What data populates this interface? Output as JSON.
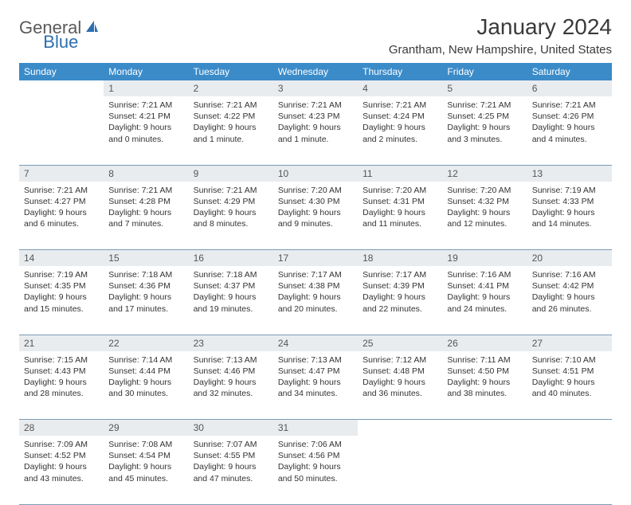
{
  "logo": {
    "text_gray": "General",
    "text_blue": "Blue"
  },
  "title": "January 2024",
  "location": "Grantham, New Hampshire, United States",
  "colors": {
    "header_bg": "#3b8bc9",
    "header_text": "#ffffff",
    "daynum_bg": "#e9ecef",
    "border": "#7a9bb5",
    "logo_gray": "#5a5a5a",
    "logo_blue": "#2c6fb0",
    "body_text": "#333333"
  },
  "typography": {
    "title_fontsize": 28,
    "location_fontsize": 15,
    "weekday_fontsize": 12,
    "daynum_fontsize": 12,
    "cell_fontsize": 10.5
  },
  "weekdays": [
    "Sunday",
    "Monday",
    "Tuesday",
    "Wednesday",
    "Thursday",
    "Friday",
    "Saturday"
  ],
  "weeks": [
    [
      null,
      {
        "n": "1",
        "sr": "Sunrise: 7:21 AM",
        "ss": "Sunset: 4:21 PM",
        "d1": "Daylight: 9 hours",
        "d2": "and 0 minutes."
      },
      {
        "n": "2",
        "sr": "Sunrise: 7:21 AM",
        "ss": "Sunset: 4:22 PM",
        "d1": "Daylight: 9 hours",
        "d2": "and 1 minute."
      },
      {
        "n": "3",
        "sr": "Sunrise: 7:21 AM",
        "ss": "Sunset: 4:23 PM",
        "d1": "Daylight: 9 hours",
        "d2": "and 1 minute."
      },
      {
        "n": "4",
        "sr": "Sunrise: 7:21 AM",
        "ss": "Sunset: 4:24 PM",
        "d1": "Daylight: 9 hours",
        "d2": "and 2 minutes."
      },
      {
        "n": "5",
        "sr": "Sunrise: 7:21 AM",
        "ss": "Sunset: 4:25 PM",
        "d1": "Daylight: 9 hours",
        "d2": "and 3 minutes."
      },
      {
        "n": "6",
        "sr": "Sunrise: 7:21 AM",
        "ss": "Sunset: 4:26 PM",
        "d1": "Daylight: 9 hours",
        "d2": "and 4 minutes."
      }
    ],
    [
      {
        "n": "7",
        "sr": "Sunrise: 7:21 AM",
        "ss": "Sunset: 4:27 PM",
        "d1": "Daylight: 9 hours",
        "d2": "and 6 minutes."
      },
      {
        "n": "8",
        "sr": "Sunrise: 7:21 AM",
        "ss": "Sunset: 4:28 PM",
        "d1": "Daylight: 9 hours",
        "d2": "and 7 minutes."
      },
      {
        "n": "9",
        "sr": "Sunrise: 7:21 AM",
        "ss": "Sunset: 4:29 PM",
        "d1": "Daylight: 9 hours",
        "d2": "and 8 minutes."
      },
      {
        "n": "10",
        "sr": "Sunrise: 7:20 AM",
        "ss": "Sunset: 4:30 PM",
        "d1": "Daylight: 9 hours",
        "d2": "and 9 minutes."
      },
      {
        "n": "11",
        "sr": "Sunrise: 7:20 AM",
        "ss": "Sunset: 4:31 PM",
        "d1": "Daylight: 9 hours",
        "d2": "and 11 minutes."
      },
      {
        "n": "12",
        "sr": "Sunrise: 7:20 AM",
        "ss": "Sunset: 4:32 PM",
        "d1": "Daylight: 9 hours",
        "d2": "and 12 minutes."
      },
      {
        "n": "13",
        "sr": "Sunrise: 7:19 AM",
        "ss": "Sunset: 4:33 PM",
        "d1": "Daylight: 9 hours",
        "d2": "and 14 minutes."
      }
    ],
    [
      {
        "n": "14",
        "sr": "Sunrise: 7:19 AM",
        "ss": "Sunset: 4:35 PM",
        "d1": "Daylight: 9 hours",
        "d2": "and 15 minutes."
      },
      {
        "n": "15",
        "sr": "Sunrise: 7:18 AM",
        "ss": "Sunset: 4:36 PM",
        "d1": "Daylight: 9 hours",
        "d2": "and 17 minutes."
      },
      {
        "n": "16",
        "sr": "Sunrise: 7:18 AM",
        "ss": "Sunset: 4:37 PM",
        "d1": "Daylight: 9 hours",
        "d2": "and 19 minutes."
      },
      {
        "n": "17",
        "sr": "Sunrise: 7:17 AM",
        "ss": "Sunset: 4:38 PM",
        "d1": "Daylight: 9 hours",
        "d2": "and 20 minutes."
      },
      {
        "n": "18",
        "sr": "Sunrise: 7:17 AM",
        "ss": "Sunset: 4:39 PM",
        "d1": "Daylight: 9 hours",
        "d2": "and 22 minutes."
      },
      {
        "n": "19",
        "sr": "Sunrise: 7:16 AM",
        "ss": "Sunset: 4:41 PM",
        "d1": "Daylight: 9 hours",
        "d2": "and 24 minutes."
      },
      {
        "n": "20",
        "sr": "Sunrise: 7:16 AM",
        "ss": "Sunset: 4:42 PM",
        "d1": "Daylight: 9 hours",
        "d2": "and 26 minutes."
      }
    ],
    [
      {
        "n": "21",
        "sr": "Sunrise: 7:15 AM",
        "ss": "Sunset: 4:43 PM",
        "d1": "Daylight: 9 hours",
        "d2": "and 28 minutes."
      },
      {
        "n": "22",
        "sr": "Sunrise: 7:14 AM",
        "ss": "Sunset: 4:44 PM",
        "d1": "Daylight: 9 hours",
        "d2": "and 30 minutes."
      },
      {
        "n": "23",
        "sr": "Sunrise: 7:13 AM",
        "ss": "Sunset: 4:46 PM",
        "d1": "Daylight: 9 hours",
        "d2": "and 32 minutes."
      },
      {
        "n": "24",
        "sr": "Sunrise: 7:13 AM",
        "ss": "Sunset: 4:47 PM",
        "d1": "Daylight: 9 hours",
        "d2": "and 34 minutes."
      },
      {
        "n": "25",
        "sr": "Sunrise: 7:12 AM",
        "ss": "Sunset: 4:48 PM",
        "d1": "Daylight: 9 hours",
        "d2": "and 36 minutes."
      },
      {
        "n": "26",
        "sr": "Sunrise: 7:11 AM",
        "ss": "Sunset: 4:50 PM",
        "d1": "Daylight: 9 hours",
        "d2": "and 38 minutes."
      },
      {
        "n": "27",
        "sr": "Sunrise: 7:10 AM",
        "ss": "Sunset: 4:51 PM",
        "d1": "Daylight: 9 hours",
        "d2": "and 40 minutes."
      }
    ],
    [
      {
        "n": "28",
        "sr": "Sunrise: 7:09 AM",
        "ss": "Sunset: 4:52 PM",
        "d1": "Daylight: 9 hours",
        "d2": "and 43 minutes."
      },
      {
        "n": "29",
        "sr": "Sunrise: 7:08 AM",
        "ss": "Sunset: 4:54 PM",
        "d1": "Daylight: 9 hours",
        "d2": "and 45 minutes."
      },
      {
        "n": "30",
        "sr": "Sunrise: 7:07 AM",
        "ss": "Sunset: 4:55 PM",
        "d1": "Daylight: 9 hours",
        "d2": "and 47 minutes."
      },
      {
        "n": "31",
        "sr": "Sunrise: 7:06 AM",
        "ss": "Sunset: 4:56 PM",
        "d1": "Daylight: 9 hours",
        "d2": "and 50 minutes."
      },
      null,
      null,
      null
    ]
  ]
}
